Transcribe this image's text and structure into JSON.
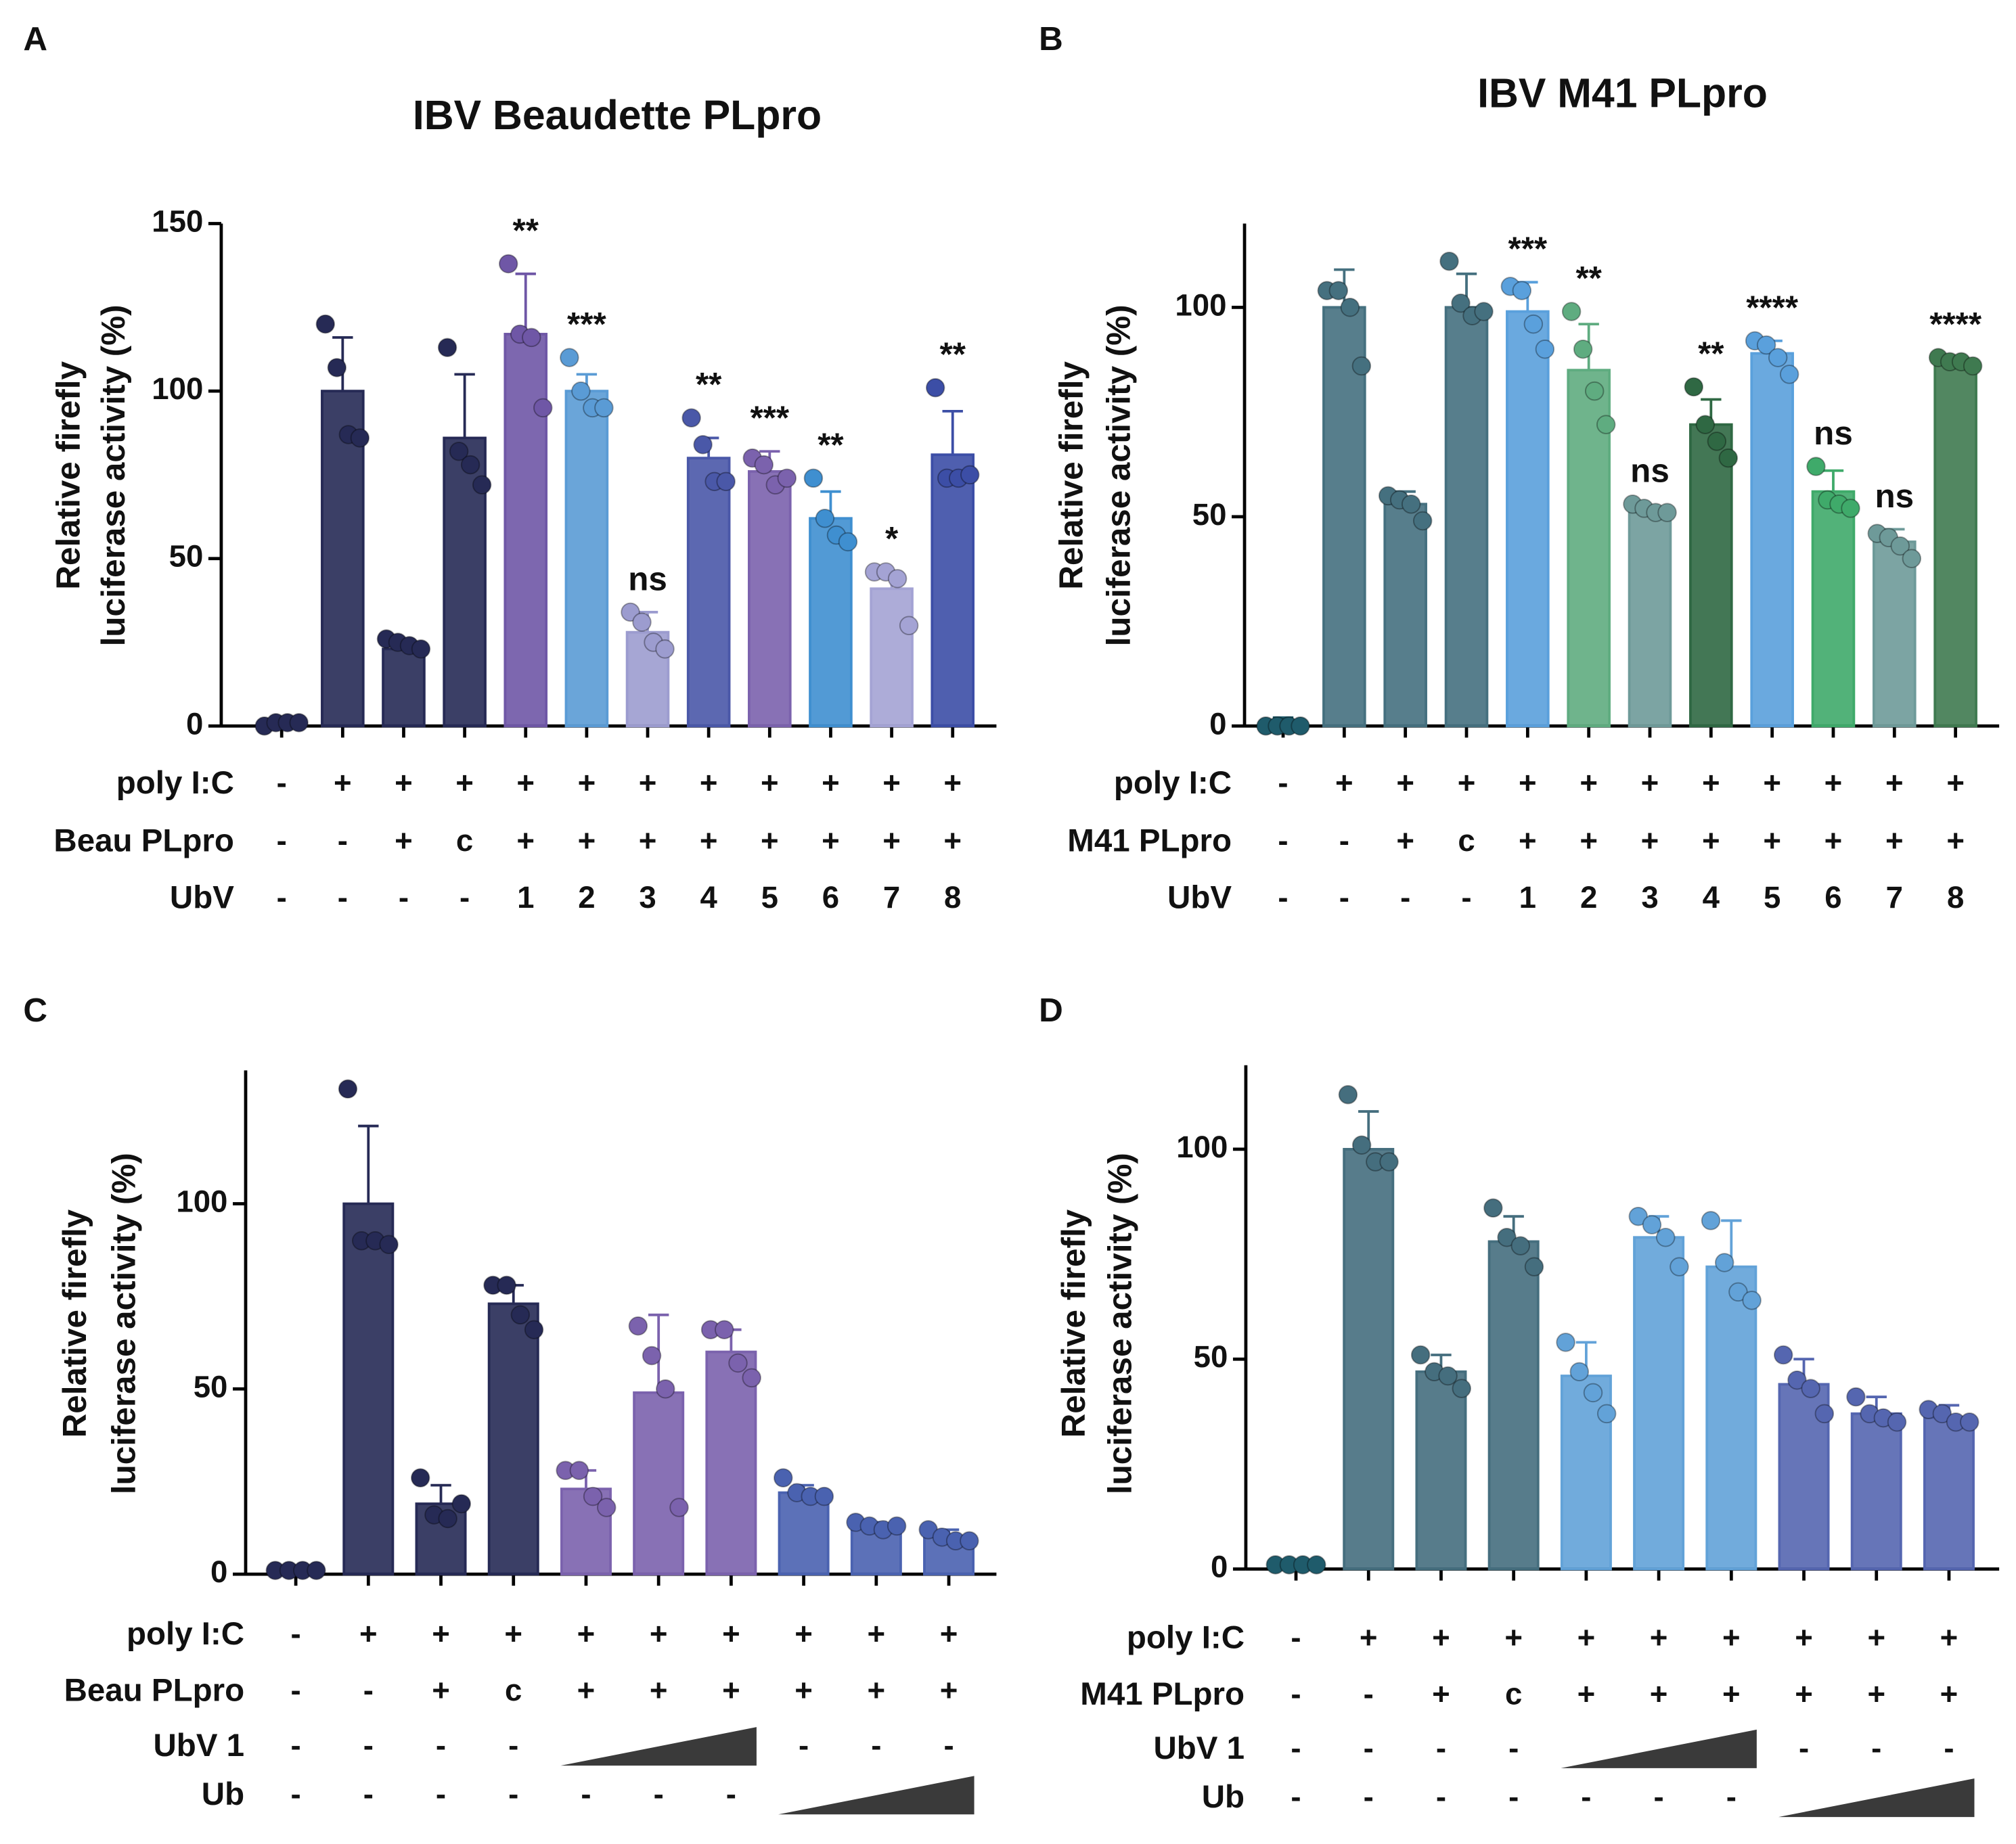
{
  "chart_data": [
    {
      "type": "bar",
      "panel": "A",
      "title": "IBV Beaudette PLpro",
      "ylabel": [
        "Relative firefly",
        "luciferase activity (%)"
      ],
      "ylim": [
        0,
        150
      ],
      "yticks": [
        0,
        50,
        100,
        150
      ],
      "values": [
        1,
        100,
        23,
        86,
        117,
        100,
        28,
        80,
        76,
        62,
        41,
        81
      ],
      "errors": [
        1,
        16,
        2,
        19,
        18,
        5,
        6,
        6,
        6,
        8,
        5,
        13
      ],
      "points": [
        [
          0,
          1,
          1,
          1
        ],
        [
          120,
          107,
          87,
          86
        ],
        [
          26,
          25,
          24,
          23
        ],
        [
          113,
          82,
          78,
          72
        ],
        [
          138,
          117,
          116,
          95
        ],
        [
          110,
          100,
          95,
          95
        ],
        [
          34,
          31,
          25,
          23
        ],
        [
          92,
          84,
          73,
          73
        ],
        [
          80,
          78,
          72,
          74
        ],
        [
          74,
          62,
          57,
          55
        ],
        [
          46,
          46,
          44,
          30
        ],
        [
          101,
          74,
          74,
          75
        ]
      ],
      "colors": [
        "#262a55",
        "#262a55",
        "#262a55",
        "#262a55",
        "#6f57a6",
        "#5a9bd5",
        "#9c9ccf",
        "#4a58a8",
        "#7b62ad",
        "#3f8fd0",
        "#a4a3d4",
        "#3c4ea6"
      ],
      "annotations": [
        null,
        null,
        null,
        null,
        "**",
        "***",
        "ns",
        "**",
        "***",
        "**",
        "*",
        "**"
      ],
      "rows": [
        {
          "label": "poly I:C",
          "cells": [
            "-",
            "+",
            "+",
            "+",
            "+",
            "+",
            "+",
            "+",
            "+",
            "+",
            "+",
            "+"
          ]
        },
        {
          "label": "Beau PLpro",
          "cells": [
            "-",
            "-",
            "+",
            "c",
            "+",
            "+",
            "+",
            "+",
            "+",
            "+",
            "+",
            "+"
          ]
        },
        {
          "label": "UbV",
          "cells": [
            "-",
            "-",
            "-",
            "-",
            "1",
            "2",
            "3",
            "4",
            "5",
            "6",
            "7",
            "8"
          ]
        }
      ]
    },
    {
      "type": "bar",
      "panel": "B",
      "title": "IBV M41 PLpro",
      "ylabel": [
        "Relative firefly",
        "luciferase activity (%)"
      ],
      "ylim": [
        0,
        120
      ],
      "yticks": [
        0,
        50,
        100
      ],
      "values": [
        1,
        100,
        53,
        100,
        99,
        85,
        51,
        72,
        89,
        56,
        44,
        87
      ],
      "errors": [
        1,
        9,
        3,
        8,
        7,
        11,
        1,
        6,
        3,
        5,
        3,
        1
      ],
      "points": [
        [
          0,
          0,
          0,
          0
        ],
        [
          104,
          104,
          100,
          86
        ],
        [
          55,
          54,
          53,
          49
        ],
        [
          111,
          101,
          98,
          99
        ],
        [
          105,
          104,
          96,
          90
        ],
        [
          99,
          90,
          80,
          72
        ],
        [
          53,
          52,
          51,
          51
        ],
        [
          81,
          72,
          68,
          64
        ],
        [
          92,
          91,
          88,
          84
        ],
        [
          62,
          54,
          53,
          52
        ],
        [
          46,
          45,
          43,
          40
        ],
        [
          88,
          87,
          87,
          86
        ]
      ],
      "colors": [
        "#1f5b6b",
        "#45707f",
        "#45707f",
        "#45707f",
        "#5aa0dc",
        "#5fac80",
        "#6e9a99",
        "#2f6843",
        "#5aa0dc",
        "#3faa6a",
        "#6e9a99",
        "#3f7a50"
      ],
      "annotations": [
        null,
        null,
        null,
        null,
        "***",
        "**",
        "ns",
        "**",
        "****",
        "ns",
        "ns",
        "****"
      ],
      "rows": [
        {
          "label": "poly I:C",
          "cells": [
            "-",
            "+",
            "+",
            "+",
            "+",
            "+",
            "+",
            "+",
            "+",
            "+",
            "+",
            "+"
          ]
        },
        {
          "label": "M41 PLpro",
          "cells": [
            "-",
            "-",
            "+",
            "c",
            "+",
            "+",
            "+",
            "+",
            "+",
            "+",
            "+",
            "+"
          ]
        },
        {
          "label": "UbV",
          "cells": [
            "-",
            "-",
            "-",
            "-",
            "1",
            "2",
            "3",
            "4",
            "5",
            "6",
            "7",
            "8"
          ]
        }
      ]
    },
    {
      "type": "bar",
      "panel": "C",
      "ylabel": [
        "Relative firefly",
        "luciferase activity (%)"
      ],
      "ylim": [
        0,
        136
      ],
      "yticks": [
        0,
        50,
        100
      ],
      "values": [
        1,
        100,
        19,
        73,
        23,
        49,
        60,
        22,
        13,
        10
      ],
      "errors": [
        0.5,
        21,
        5,
        5,
        5,
        21,
        6,
        2,
        1,
        2
      ],
      "points": [
        [
          1,
          1,
          1,
          1
        ],
        [
          131,
          90,
          90,
          89
        ],
        [
          26,
          16,
          15,
          19
        ],
        [
          78,
          78,
          70,
          66
        ],
        [
          28,
          28,
          21,
          18
        ],
        [
          67,
          59,
          50,
          18
        ],
        [
          66,
          66,
          57,
          53
        ],
        [
          26,
          22,
          21,
          21
        ],
        [
          14,
          13,
          12,
          13
        ],
        [
          12,
          10,
          9,
          9
        ]
      ],
      "colors": [
        "#262a55",
        "#262a55",
        "#262a55",
        "#262a55",
        "#7b62ad",
        "#7b62ad",
        "#7b62ad",
        "#4a62b0",
        "#4a62b0",
        "#4a62b0"
      ],
      "rows": [
        {
          "label": "poly I:C",
          "cells": [
            "-",
            "+",
            "+",
            "+",
            "+",
            "+",
            "+",
            "+",
            "+",
            "+"
          ]
        },
        {
          "label": "Beau PLpro",
          "cells": [
            "-",
            "-",
            "+",
            "c",
            "+",
            "+",
            "+",
            "+",
            "+",
            "+"
          ]
        },
        {
          "label": "UbV 1",
          "cells": [
            "-",
            "-",
            "-",
            "-",
            null,
            null,
            null,
            "-",
            "-",
            "-"
          ]
        },
        {
          "label": "Ub",
          "cells": [
            "-",
            "-",
            "-",
            "-",
            "-",
            "-",
            "-",
            null,
            null,
            null
          ]
        }
      ]
    },
    {
      "type": "bar",
      "panel": "D",
      "ylabel": [
        "Relative firefly",
        "luciferase activity (%)"
      ],
      "ylim": [
        0,
        120
      ],
      "yticks": [
        0,
        50,
        100
      ],
      "values": [
        1,
        100,
        47,
        78,
        46,
        79,
        72,
        44,
        37,
        36
      ],
      "errors": [
        0.5,
        9,
        4,
        6,
        8,
        5,
        11,
        6,
        4,
        3
      ],
      "points": [
        [
          1,
          1,
          1,
          1
        ],
        [
          113,
          101,
          97,
          97
        ],
        [
          51,
          47,
          46,
          43
        ],
        [
          86,
          79,
          77,
          72
        ],
        [
          54,
          47,
          42,
          37
        ],
        [
          84,
          82,
          79,
          72
        ],
        [
          83,
          73,
          66,
          64
        ],
        [
          51,
          45,
          43,
          37
        ],
        [
          41,
          37,
          36,
          35
        ],
        [
          38,
          37,
          35,
          35
        ]
      ],
      "colors": [
        "#1f5b6b",
        "#456e7e",
        "#456e7e",
        "#456e7e",
        "#62a2d8",
        "#62a2d8",
        "#62a2d8",
        "#5566b0",
        "#5566b0",
        "#5566b0"
      ],
      "rows": [
        {
          "label": "poly I:C",
          "cells": [
            "-",
            "+",
            "+",
            "+",
            "+",
            "+",
            "+",
            "+",
            "+",
            "+"
          ]
        },
        {
          "label": "M41 PLpro",
          "cells": [
            "-",
            "-",
            "+",
            "c",
            "+",
            "+",
            "+",
            "+",
            "+",
            "+"
          ]
        },
        {
          "label": "UbV 1",
          "cells": [
            "-",
            "-",
            "-",
            "-",
            null,
            null,
            null,
            "-",
            "-",
            "-"
          ]
        },
        {
          "label": "Ub",
          "cells": [
            "-",
            "-",
            "-",
            "-",
            "-",
            "-",
            "-",
            null,
            null,
            null
          ]
        }
      ]
    }
  ]
}
